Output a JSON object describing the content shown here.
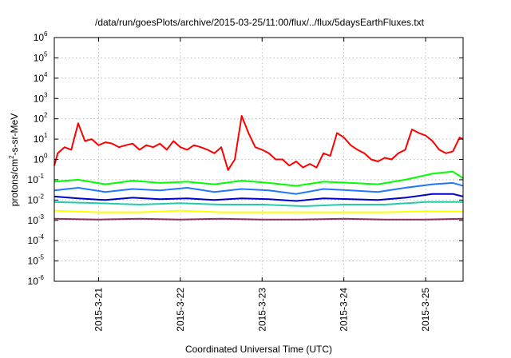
{
  "chart_data": {
    "type": "line",
    "title": "/data/run/goesPlots/archive/2015-03-25/11:00/flux/../flux/5daysEarthFluxes.txt",
    "xlabel": "Coordinated Universal Time (UTC)",
    "ylabel": {
      "base": "protons/cm",
      "sup": "2",
      "rest": "-s-sr-MeV"
    },
    "yscale": "log",
    "ylim": [
      1e-06,
      1000000.0
    ],
    "y_ticks": [
      {
        "value": 1e-06,
        "base": "10",
        "exp": "-6"
      },
      {
        "value": 1e-05,
        "base": "10",
        "exp": "-5"
      },
      {
        "value": 0.0001,
        "base": "10",
        "exp": "-4"
      },
      {
        "value": 0.001,
        "base": "10",
        "exp": "-3"
      },
      {
        "value": 0.01,
        "base": "10",
        "exp": "-2"
      },
      {
        "value": 0.1,
        "base": "10",
        "exp": "-1"
      },
      {
        "value": 1,
        "base": "10",
        "exp": "0"
      },
      {
        "value": 10,
        "base": "10",
        "exp": "1"
      },
      {
        "value": 100,
        "base": "10",
        "exp": "2"
      },
      {
        "value": 1000,
        "base": "10",
        "exp": "3"
      },
      {
        "value": 10000,
        "base": "10",
        "exp": "4"
      },
      {
        "value": 100000,
        "base": "10",
        "exp": "5"
      },
      {
        "value": 1000000,
        "base": "10",
        "exp": "6"
      }
    ],
    "xlim": [
      "2015-03-20 11:00",
      "2015-03-25 11:00"
    ],
    "x_ticks": [
      {
        "value": "2015-03-21 00:00",
        "label": "2015-3-21"
      },
      {
        "value": "2015-03-22 00:00",
        "label": "2015-3-22"
      },
      {
        "value": "2015-03-23 00:00",
        "label": "2015-3-23"
      },
      {
        "value": "2015-03-24 00:00",
        "label": "2015-3-24"
      },
      {
        "value": "2015-03-25 00:00",
        "label": "2015-3-25"
      }
    ],
    "grid": true,
    "series": [
      {
        "color": "#ff0000",
        "x": [
          "2015-03-20 11:00",
          "2015-03-20 12:00",
          "2015-03-20 14:00",
          "2015-03-20 16:00",
          "2015-03-20 18:00",
          "2015-03-20 20:00",
          "2015-03-20 22:00",
          "2015-03-21 00:00",
          "2015-03-21 02:00",
          "2015-03-21 04:00",
          "2015-03-21 06:00",
          "2015-03-21 08:00",
          "2015-03-21 10:00",
          "2015-03-21 12:00",
          "2015-03-21 14:00",
          "2015-03-21 16:00",
          "2015-03-21 18:00",
          "2015-03-21 20:00",
          "2015-03-21 22:00",
          "2015-03-22 00:00",
          "2015-03-22 02:00",
          "2015-03-22 04:00",
          "2015-03-22 06:00",
          "2015-03-22 08:00",
          "2015-03-22 10:00",
          "2015-03-22 12:00",
          "2015-03-22 14:00",
          "2015-03-22 16:00",
          "2015-03-22 18:00",
          "2015-03-22 20:00",
          "2015-03-22 22:00",
          "2015-03-23 00:00",
          "2015-03-23 02:00",
          "2015-03-23 04:00",
          "2015-03-23 06:00",
          "2015-03-23 08:00",
          "2015-03-23 10:00",
          "2015-03-23 12:00",
          "2015-03-23 14:00",
          "2015-03-23 16:00",
          "2015-03-23 18:00",
          "2015-03-23 20:00",
          "2015-03-23 22:00",
          "2015-03-24 00:00",
          "2015-03-24 02:00",
          "2015-03-24 04:00",
          "2015-03-24 06:00",
          "2015-03-24 08:00",
          "2015-03-24 10:00",
          "2015-03-24 12:00",
          "2015-03-24 14:00",
          "2015-03-24 16:00",
          "2015-03-24 18:00",
          "2015-03-24 20:00",
          "2015-03-24 22:00",
          "2015-03-25 00:00",
          "2015-03-25 02:00",
          "2015-03-25 04:00",
          "2015-03-25 06:00",
          "2015-03-25 08:00",
          "2015-03-25 10:00",
          "2015-03-25 11:00"
        ],
        "values": [
          0.5,
          2,
          4,
          3,
          60,
          8,
          10,
          5,
          7,
          6,
          4,
          5,
          6,
          3,
          5,
          4,
          6,
          3,
          8,
          4,
          3,
          5,
          4,
          3,
          2,
          4,
          0.3,
          1,
          140,
          20,
          4,
          3,
          2,
          1,
          1,
          0.5,
          0.8,
          0.4,
          0.6,
          0.4,
          2,
          1.5,
          20,
          12,
          5,
          3,
          2,
          1,
          0.8,
          1.2,
          1,
          2,
          3,
          30,
          20,
          15,
          8,
          3,
          2,
          2.5,
          12,
          10
        ]
      },
      {
        "color": "#00ff00",
        "x": [
          "2015-03-20 11:00",
          "2015-03-20 18:00",
          "2015-03-21 02:00",
          "2015-03-21 10:00",
          "2015-03-21 18:00",
          "2015-03-22 02:00",
          "2015-03-22 10:00",
          "2015-03-22 18:00",
          "2015-03-23 02:00",
          "2015-03-23 10:00",
          "2015-03-23 18:00",
          "2015-03-24 02:00",
          "2015-03-24 10:00",
          "2015-03-24 18:00",
          "2015-03-25 02:00",
          "2015-03-25 08:00",
          "2015-03-25 11:00"
        ],
        "values": [
          0.08,
          0.1,
          0.06,
          0.09,
          0.07,
          0.08,
          0.06,
          0.09,
          0.07,
          0.05,
          0.08,
          0.07,
          0.06,
          0.1,
          0.2,
          0.25,
          0.12
        ]
      },
      {
        "color": "#2277ff",
        "x": [
          "2015-03-20 11:00",
          "2015-03-20 18:00",
          "2015-03-21 02:00",
          "2015-03-21 10:00",
          "2015-03-21 18:00",
          "2015-03-22 02:00",
          "2015-03-22 10:00",
          "2015-03-22 18:00",
          "2015-03-23 02:00",
          "2015-03-23 10:00",
          "2015-03-23 18:00",
          "2015-03-24 02:00",
          "2015-03-24 10:00",
          "2015-03-24 18:00",
          "2015-03-25 02:00",
          "2015-03-25 08:00",
          "2015-03-25 11:00"
        ],
        "values": [
          0.03,
          0.04,
          0.025,
          0.035,
          0.03,
          0.04,
          0.025,
          0.035,
          0.03,
          0.02,
          0.035,
          0.03,
          0.025,
          0.04,
          0.06,
          0.07,
          0.05
        ]
      },
      {
        "color": "#0000cc",
        "x": [
          "2015-03-20 11:00",
          "2015-03-20 18:00",
          "2015-03-21 02:00",
          "2015-03-21 10:00",
          "2015-03-21 18:00",
          "2015-03-22 02:00",
          "2015-03-22 10:00",
          "2015-03-22 18:00",
          "2015-03-23 02:00",
          "2015-03-23 10:00",
          "2015-03-23 18:00",
          "2015-03-24 02:00",
          "2015-03-24 10:00",
          "2015-03-24 18:00",
          "2015-03-25 02:00",
          "2015-03-25 08:00",
          "2015-03-25 11:00"
        ],
        "values": [
          0.015,
          0.012,
          0.01,
          0.013,
          0.011,
          0.012,
          0.01,
          0.012,
          0.011,
          0.009,
          0.012,
          0.011,
          0.01,
          0.013,
          0.02,
          0.02,
          0.015
        ]
      },
      {
        "color": "#22ccaa",
        "x": [
          "2015-03-20 11:00",
          "2015-03-21 00:00",
          "2015-03-21 12:00",
          "2015-03-22 00:00",
          "2015-03-22 12:00",
          "2015-03-23 00:00",
          "2015-03-23 12:00",
          "2015-03-24 00:00",
          "2015-03-24 12:00",
          "2015-03-25 00:00",
          "2015-03-25 11:00"
        ],
        "values": [
          0.008,
          0.007,
          0.006,
          0.007,
          0.006,
          0.006,
          0.005,
          0.006,
          0.006,
          0.008,
          0.008
        ]
      },
      {
        "color": "#ffff00",
        "x": [
          "2015-03-20 11:00",
          "2015-03-21 00:00",
          "2015-03-21 12:00",
          "2015-03-22 00:00",
          "2015-03-22 12:00",
          "2015-03-23 00:00",
          "2015-03-23 12:00",
          "2015-03-24 00:00",
          "2015-03-24 12:00",
          "2015-03-25 00:00",
          "2015-03-25 11:00"
        ],
        "values": [
          0.003,
          0.0025,
          0.0025,
          0.003,
          0.0025,
          0.0025,
          0.0025,
          0.0025,
          0.0025,
          0.0028,
          0.0027
        ]
      },
      {
        "color": "#883366",
        "x": [
          "2015-03-20 11:00",
          "2015-03-21 00:00",
          "2015-03-21 12:00",
          "2015-03-22 00:00",
          "2015-03-22 12:00",
          "2015-03-23 00:00",
          "2015-03-23 12:00",
          "2015-03-24 00:00",
          "2015-03-24 12:00",
          "2015-03-25 00:00",
          "2015-03-25 11:00"
        ],
        "values": [
          0.0012,
          0.0011,
          0.0012,
          0.0011,
          0.0012,
          0.0011,
          0.0011,
          0.0012,
          0.0011,
          0.0011,
          0.0012
        ]
      }
    ]
  }
}
